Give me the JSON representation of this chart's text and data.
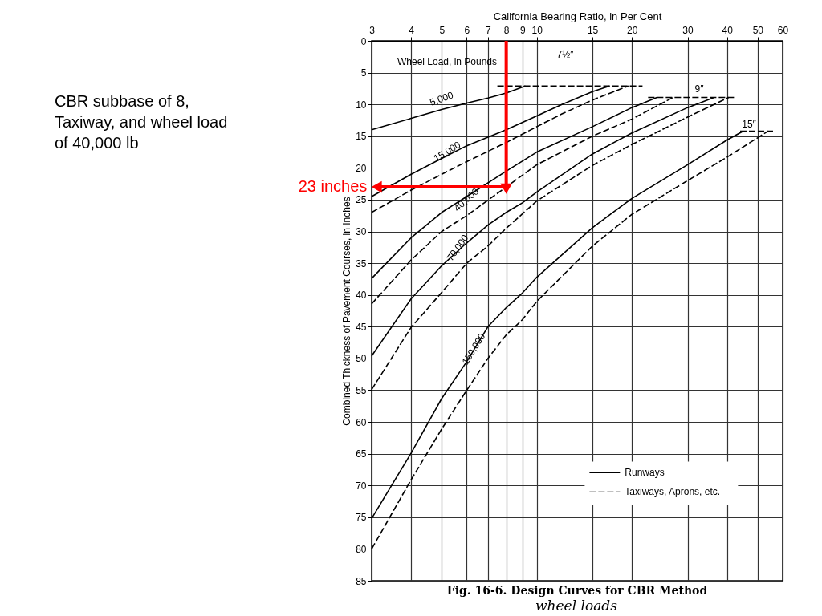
{
  "chart_data": {
    "type": "line",
    "title": "Fig. 16-6.   Design Curves for CBR Method",
    "xlabel": "California Bearing Ratio, in Per Cent",
    "ylabel": "Combined Thickness of Pavement Courses, in Inches",
    "log": "x",
    "xlim": [
      3,
      60
    ],
    "xticks": [
      3,
      4,
      5,
      6,
      7,
      8,
      9,
      10,
      15,
      20,
      30,
      40,
      50,
      60
    ],
    "ylim": [
      85,
      0
    ],
    "yticks": [
      0,
      5,
      10,
      15,
      20,
      25,
      30,
      35,
      40,
      45,
      50,
      55,
      60,
      65,
      70,
      75,
      80,
      85
    ],
    "grid": true,
    "legend": "bottom right",
    "series": [
      {
        "name": "Runways",
        "color": "#000000",
        "line_style": "solid",
        "x": [
          3,
          4,
          5,
          6,
          7,
          8,
          9.2
        ],
        "values": [
          14.0,
          12.2,
          10.8,
          9.8,
          9.0,
          8.2,
          7.1
        ]
      },
      {
        "color": "#000000",
        "line_style": "solid",
        "x": [
          3,
          4,
          5,
          6,
          8,
          10,
          12,
          15,
          17
        ],
        "values": [
          24.5,
          21,
          18.5,
          16.5,
          14,
          11.8,
          10,
          8,
          7.1
        ]
      },
      {
        "name": "Taxiways, Aprons, etc.",
        "color": "#000000",
        "line_style": "dashed",
        "x": [
          3,
          4,
          5,
          6,
          8,
          10,
          12,
          15,
          19.5
        ],
        "values": [
          27,
          23.5,
          21,
          19,
          16,
          13.5,
          11.5,
          9.3,
          7.1
        ]
      },
      {
        "color": "#000000",
        "line_style": "solid",
        "x": [
          3,
          4,
          5,
          6,
          8,
          10,
          15,
          20,
          24
        ],
        "values": [
          37.4,
          31,
          27,
          24.5,
          20.5,
          17.5,
          13.5,
          10.5,
          8.9
        ]
      },
      {
        "color": "#000000",
        "line_style": "dashed",
        "x": [
          3,
          4,
          5,
          6,
          8,
          10,
          15,
          20,
          27
        ],
        "values": [
          41.4,
          34.5,
          30,
          27.5,
          23,
          19.5,
          15,
          12.3,
          8.9
        ]
      },
      {
        "color": "#000000",
        "line_style": "solid",
        "x": [
          3,
          4,
          5,
          6,
          7,
          8,
          9,
          10,
          15,
          20,
          30,
          36.4
        ],
        "values": [
          49.6,
          40.6,
          35.4,
          31.8,
          29,
          27,
          25.5,
          23.8,
          17.8,
          14.5,
          10.5,
          8.9
        ]
      },
      {
        "color": "#000000",
        "line_style": "dashed",
        "x": [
          3,
          4,
          5,
          6,
          7,
          8,
          10,
          15,
          20,
          30,
          40.5
        ],
        "values": [
          54.9,
          45.1,
          39.6,
          35,
          32.3,
          29.5,
          25.2,
          19.6,
          16.3,
          12,
          8.9
        ]
      },
      {
        "color": "#000000",
        "line_style": "solid",
        "x": [
          3,
          4,
          5,
          6,
          7,
          8,
          9,
          10,
          15,
          20,
          30,
          40,
          45
        ],
        "values": [
          75.2,
          64.9,
          56.3,
          50.5,
          45,
          42,
          39.7,
          37.2,
          29.4,
          24.8,
          19.5,
          15.6,
          14.2
        ]
      },
      {
        "color": "#000000",
        "line_style": "dashed",
        "x": [
          3,
          4,
          5,
          6,
          7,
          8,
          9,
          10,
          15,
          20,
          30,
          40,
          54
        ],
        "values": [
          80,
          69.1,
          61.1,
          55,
          50,
          46.3,
          43.9,
          41,
          32.3,
          27.3,
          22,
          18.3,
          14.2
        ]
      },
      {
        "color": "#000000",
        "line_style": "dashed",
        "x": [
          7.5,
          21.6
        ],
        "values": [
          7.1,
          7.1
        ]
      },
      {
        "color": "#000000",
        "line_style": "dashed",
        "x": [
          22.5,
          42.3
        ],
        "values": [
          8.9,
          8.9
        ]
      },
      {
        "color": "#000000",
        "line_style": "dashed",
        "x": [
          44,
          56
        ],
        "values": [
          14.2,
          14.2
        ]
      },
      {
        "name": "23 inches",
        "color": "#ff0000",
        "marker": "triangle",
        "x": [
          8,
          8,
          3.15
        ],
        "values": [
          0,
          23,
          23
        ]
      }
    ],
    "annotations": [
      "CBR subbase of 8,\nTaxiway, and wheel load\n of 40,000 lb",
      "wheel loads",
      "Wheel Load, in Pounds",
      "5,000",
      "15,000",
      "40,000",
      "70,000",
      "150,000",
      "7½″",
      "9″",
      "15″"
    ]
  }
}
